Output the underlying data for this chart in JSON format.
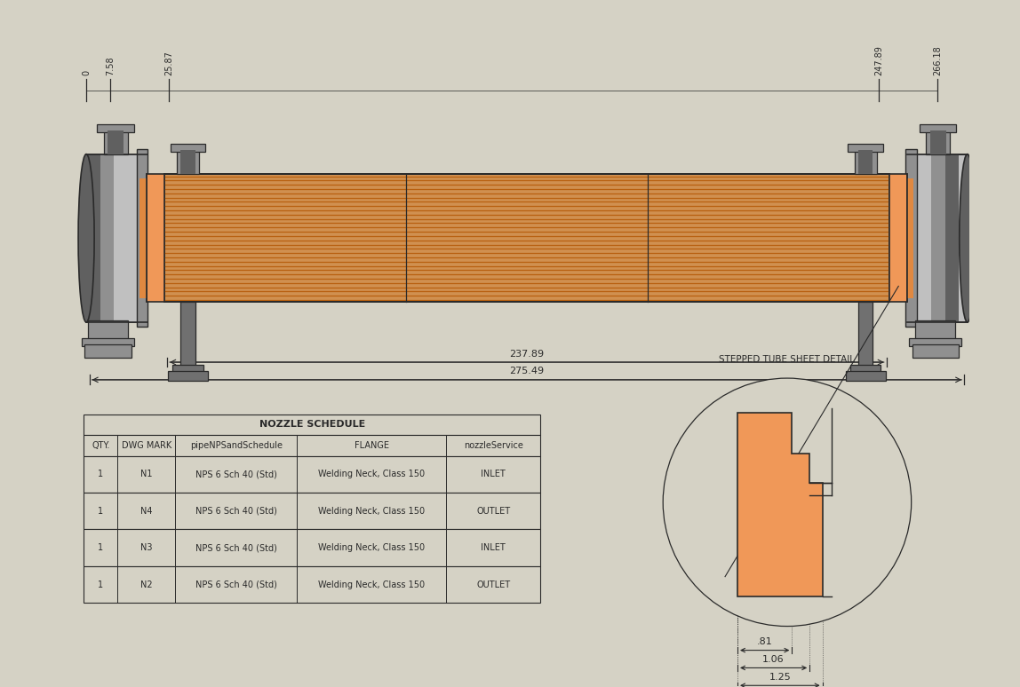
{
  "bg_color": "#d5d2c5",
  "line_color": "#2a2a2a",
  "tube_color_main": "#b86010",
  "tube_color_bg": "#d09050",
  "shell_dark": "#606060",
  "shell_mid": "#909090",
  "shell_light": "#c0c0c0",
  "tubesheet_fill": "#f09858",
  "gasket_fill": "#e08840",
  "support_color": "#707070",
  "nozzle_labels": [
    "N1",
    "N2",
    "N3",
    "N4"
  ],
  "dim_labels": [
    "0",
    "7.58",
    "25.87",
    "247.89",
    "266.18"
  ],
  "dim_237": "237.89",
  "dim_275": "275.49",
  "table_title": "NOZZLE SCHEDULE",
  "table_headers": [
    "QTY.",
    "DWG MARK",
    "pipeNPSandSchedule",
    "FLANGE",
    "nozzleService"
  ],
  "table_rows": [
    [
      "1",
      "N1",
      "NPS 6 Sch 40 (Std)",
      "Welding Neck, Class 150",
      "INLET"
    ],
    [
      "1",
      "N4",
      "NPS 6 Sch 40 (Std)",
      "Welding Neck, Class 150",
      "OUTLET"
    ],
    [
      "1",
      "N3",
      "NPS 6 Sch 40 (Std)",
      "Welding Neck, Class 150",
      "INLET"
    ],
    [
      "1",
      "N2",
      "NPS 6 Sch 40 (Std)",
      "Welding Neck, Class 150",
      "OUTLET"
    ]
  ],
  "detail_label": "STEPPED TUBE SHEET DETAIL",
  "detail_dims": [
    ".81",
    "1.06",
    "1.25"
  ]
}
